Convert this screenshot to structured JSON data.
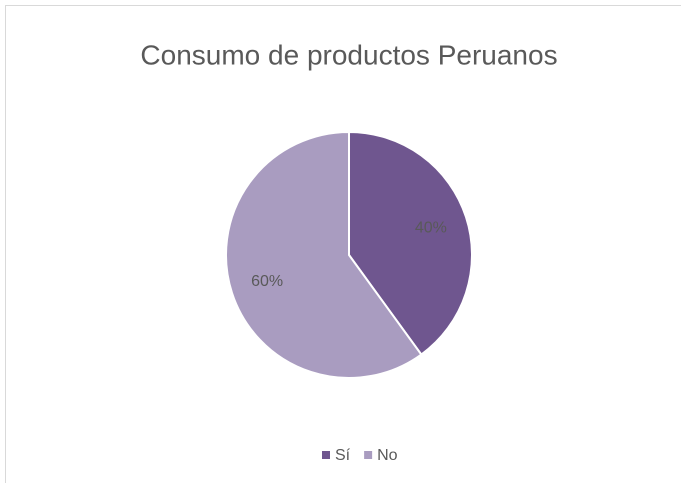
{
  "chart_data": {
    "type": "pie",
    "title": "Consumo de productos Peruanos",
    "categories": [
      "Sí",
      "No"
    ],
    "values": [
      40,
      60
    ],
    "value_labels": [
      "40%",
      "60%"
    ],
    "colors": [
      "#6f568f",
      "#a99cc0"
    ],
    "legend": "bottom"
  }
}
